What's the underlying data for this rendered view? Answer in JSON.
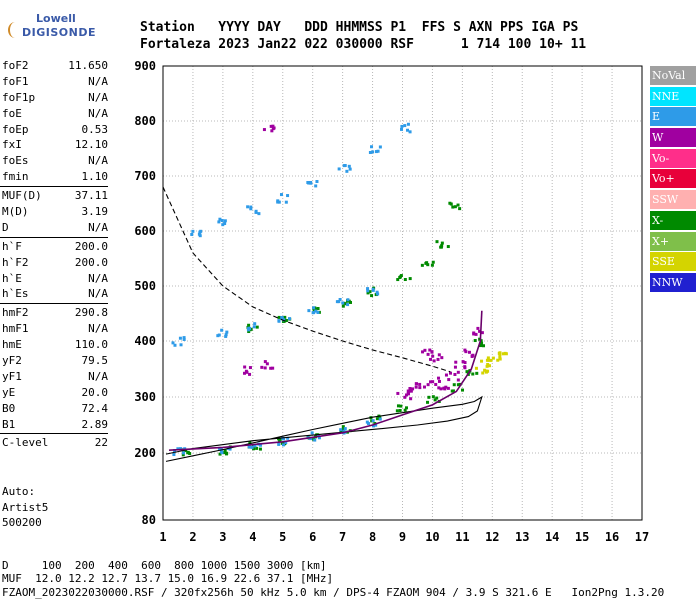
{
  "logo": {
    "line1": "Lowell",
    "line2": "DIGISONDE"
  },
  "header": {
    "line1": "Station   YYYY DAY   DDD HHMMSS P1  FFS S AXN PPS IGA PS",
    "line2": "Fortaleza 2023 Jan22 022 030000 RSF      1 714 100 10+ 11"
  },
  "params": [
    {
      "name": "foF2",
      "value": "11.650"
    },
    {
      "name": "foF1",
      "value": "N/A"
    },
    {
      "name": "foF1p",
      "value": "N/A"
    },
    {
      "name": "foE",
      "value": "N/A"
    },
    {
      "name": "foEp",
      "value": "0.53"
    },
    {
      "name": "fxI",
      "value": "12.10"
    },
    {
      "name": "foEs",
      "value": "N/A"
    },
    {
      "name": "fmin",
      "value": "1.10"
    },
    {
      "sep": true
    },
    {
      "name": "MUF(D)",
      "value": "37.11"
    },
    {
      "name": "M(D)",
      "value": "3.19"
    },
    {
      "name": "D",
      "value": "N/A"
    },
    {
      "sep": true
    },
    {
      "name": "h`F",
      "value": "200.0"
    },
    {
      "name": "h`F2",
      "value": "200.0"
    },
    {
      "name": "h`E",
      "value": "N/A"
    },
    {
      "name": "h`Es",
      "value": "N/A"
    },
    {
      "sep": true
    },
    {
      "name": "hmF2",
      "value": "290.8"
    },
    {
      "name": "hmF1",
      "value": "N/A"
    },
    {
      "name": "hmE",
      "value": "110.0"
    },
    {
      "name": "yF2",
      "value": "79.5"
    },
    {
      "name": "yF1",
      "value": "N/A"
    },
    {
      "name": "yE",
      "value": "20.0"
    },
    {
      "name": "B0",
      "value": "72.4"
    },
    {
      "name": "B1",
      "value": "2.89"
    },
    {
      "sep": true
    },
    {
      "name": "C-level",
      "value": "22"
    }
  ],
  "auto": {
    "l1": "Auto:",
    "l2": "Artist5",
    "l3": "500200"
  },
  "legend": [
    {
      "label": "NoVal",
      "color": "#a0a0a0"
    },
    {
      "label": "NNE",
      "color": "#00e5ff"
    },
    {
      "label": "E",
      "color": "#2e9be8"
    },
    {
      "label": "W",
      "color": "#a000a0"
    },
    {
      "label": "Vo-",
      "color": "#ff2e8a"
    },
    {
      "label": "Vo+",
      "color": "#e8003a"
    },
    {
      "label": "SSW",
      "color": "#ffb0b0"
    },
    {
      "label": "X-",
      "color": "#008a00"
    },
    {
      "label": "X+",
      "color": "#7fbf4a"
    },
    {
      "label": "SSE",
      "color": "#d4d400"
    },
    {
      "label": "NNW",
      "color": "#2020d0"
    }
  ],
  "footer": {
    "dist": "D     100  200  400  600  800 1000 1500 3000 [km]",
    "muf": "MUF  12.0 12.2 12.7 13.7 15.0 16.9 22.6 37.1 [MHz]",
    "file": "FZAOM_2023022030000.RSF / 320fx256h 50 kHz 5.0 km / DPS-4 FZAOM 904 / 3.9 S 321.6 E   Ion2Png 1.3.20"
  },
  "chart_data": {
    "type": "scatter",
    "x_ticks": [
      "1",
      "2",
      "3",
      "4",
      "5",
      "6",
      "7",
      "8",
      "9",
      "10",
      "11",
      "12",
      "13",
      "14",
      "15",
      "16",
      "17"
    ],
    "y_ticks": [
      "80",
      "200",
      "300",
      "400",
      "500",
      "600",
      "700",
      "800",
      "900"
    ],
    "xlim": [
      1,
      17
    ],
    "ylim": [
      80,
      900
    ],
    "grid": true,
    "series": [
      {
        "name": "X-",
        "color": "#008a00",
        "points": [
          [
            1.8,
            203
          ],
          [
            3,
            207
          ],
          [
            4,
            214
          ],
          [
            5,
            222
          ],
          [
            6,
            233
          ],
          [
            7,
            245
          ],
          [
            8,
            262
          ],
          [
            9,
            280
          ],
          [
            10,
            298
          ],
          [
            10.8,
            320
          ],
          [
            11.3,
            350
          ],
          [
            11.6,
            400
          ],
          [
            4,
            426
          ],
          [
            5,
            440
          ],
          [
            6,
            456
          ],
          [
            7,
            472
          ],
          [
            8,
            492
          ],
          [
            9,
            516
          ],
          [
            9.8,
            545
          ],
          [
            10.3,
            580
          ],
          [
            10.7,
            650
          ]
        ]
      },
      {
        "name": "E",
        "color": "#2e9be8",
        "points": [
          [
            1.5,
            204
          ],
          [
            3,
            208
          ],
          [
            4,
            215
          ],
          [
            5,
            223
          ],
          [
            6,
            232
          ],
          [
            7,
            244
          ],
          [
            8,
            258
          ],
          [
            1.5,
            402
          ],
          [
            3,
            416
          ],
          [
            4,
            428
          ],
          [
            5,
            441
          ],
          [
            6,
            458
          ],
          [
            7,
            475
          ],
          [
            8,
            494
          ],
          [
            2,
            598
          ],
          [
            3,
            620
          ],
          [
            4,
            640
          ],
          [
            5,
            662
          ],
          [
            6,
            690
          ],
          [
            7,
            718
          ],
          [
            8,
            750
          ],
          [
            9,
            790
          ]
        ]
      },
      {
        "name": "W",
        "color": "#a000a0",
        "points": [
          [
            9,
            305
          ],
          [
            9.3,
            318
          ],
          [
            9.6,
            325
          ],
          [
            10,
            330
          ],
          [
            10.3,
            315
          ],
          [
            10.6,
            340
          ],
          [
            10.9,
            360
          ],
          [
            11.2,
            382
          ],
          [
            11.5,
            420
          ],
          [
            3.8,
            350
          ],
          [
            4.4,
            360
          ],
          [
            9.8,
            380
          ],
          [
            10.1,
            372
          ],
          [
            4.5,
            790
          ]
        ]
      },
      {
        "name": "SSE",
        "color": "#d4d400",
        "points": [
          [
            11.6,
            350
          ],
          [
            11.8,
            362
          ],
          [
            12,
            375
          ],
          [
            12.3,
            380
          ]
        ]
      }
    ],
    "lines": [
      {
        "name": "profile",
        "points": [
          [
            1.1,
            185
          ],
          [
            2,
            195
          ],
          [
            3,
            206
          ],
          [
            4,
            218
          ],
          [
            5,
            230
          ],
          [
            6,
            242
          ],
          [
            7,
            253
          ],
          [
            8,
            264
          ],
          [
            9,
            272
          ],
          [
            10,
            280
          ],
          [
            11,
            287
          ],
          [
            11.4,
            292
          ],
          [
            11.65,
            300
          ],
          [
            11.5,
            275
          ],
          [
            11.2,
            265
          ],
          [
            10.5,
            257
          ],
          [
            9.5,
            250
          ],
          [
            8,
            242
          ],
          [
            6,
            232
          ],
          [
            4,
            222
          ],
          [
            2,
            208
          ],
          [
            1.1,
            198
          ]
        ]
      },
      {
        "name": "ordinary-trace",
        "points": [
          [
            1.2,
            205
          ],
          [
            3,
            210
          ],
          [
            5,
            220
          ],
          [
            7,
            236
          ],
          [
            8,
            250
          ],
          [
            9,
            268
          ],
          [
            10,
            286
          ],
          [
            10.8,
            310
          ],
          [
            11.3,
            350
          ],
          [
            11.6,
            400
          ],
          [
            11.65,
            455
          ]
        ]
      },
      {
        "name": "muf-curve",
        "points": [
          [
            1,
            680
          ],
          [
            2,
            560
          ],
          [
            3,
            500
          ],
          [
            4,
            462
          ],
          [
            5,
            438
          ],
          [
            6,
            418
          ],
          [
            7,
            400
          ],
          [
            8,
            384
          ],
          [
            9,
            370
          ],
          [
            10,
            355
          ],
          [
            10.6,
            345
          ]
        ]
      }
    ]
  }
}
